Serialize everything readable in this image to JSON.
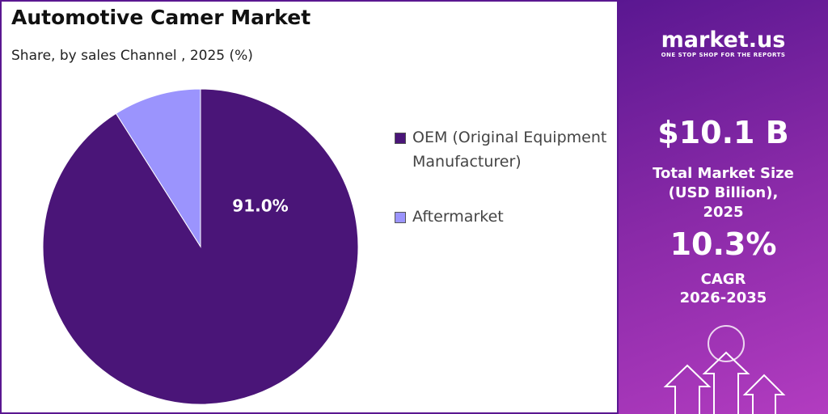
{
  "chart_data": {
    "type": "pie",
    "title": "Automotive Camer  Market",
    "subtitle": "Share, by sales Channel , 2025 (%)",
    "categories": [
      "OEM (Original Equipment Manufacturer)",
      "Aftermarket"
    ],
    "values": [
      91,
      9
    ],
    "value_labels": [
      "91.0%",
      null
    ],
    "colors": [
      "#4a1578",
      "#9b94fd"
    ]
  },
  "panel": {
    "brand": "market.us",
    "tagline": "ONE STOP SHOP FOR THE REPORTS",
    "market_size": "$10.1 B",
    "market_size_label": "Total Market Size (USD Billion), 2025",
    "cagr": "10.3%",
    "cagr_label": "CAGR",
    "cagr_period": "2026-2035"
  }
}
